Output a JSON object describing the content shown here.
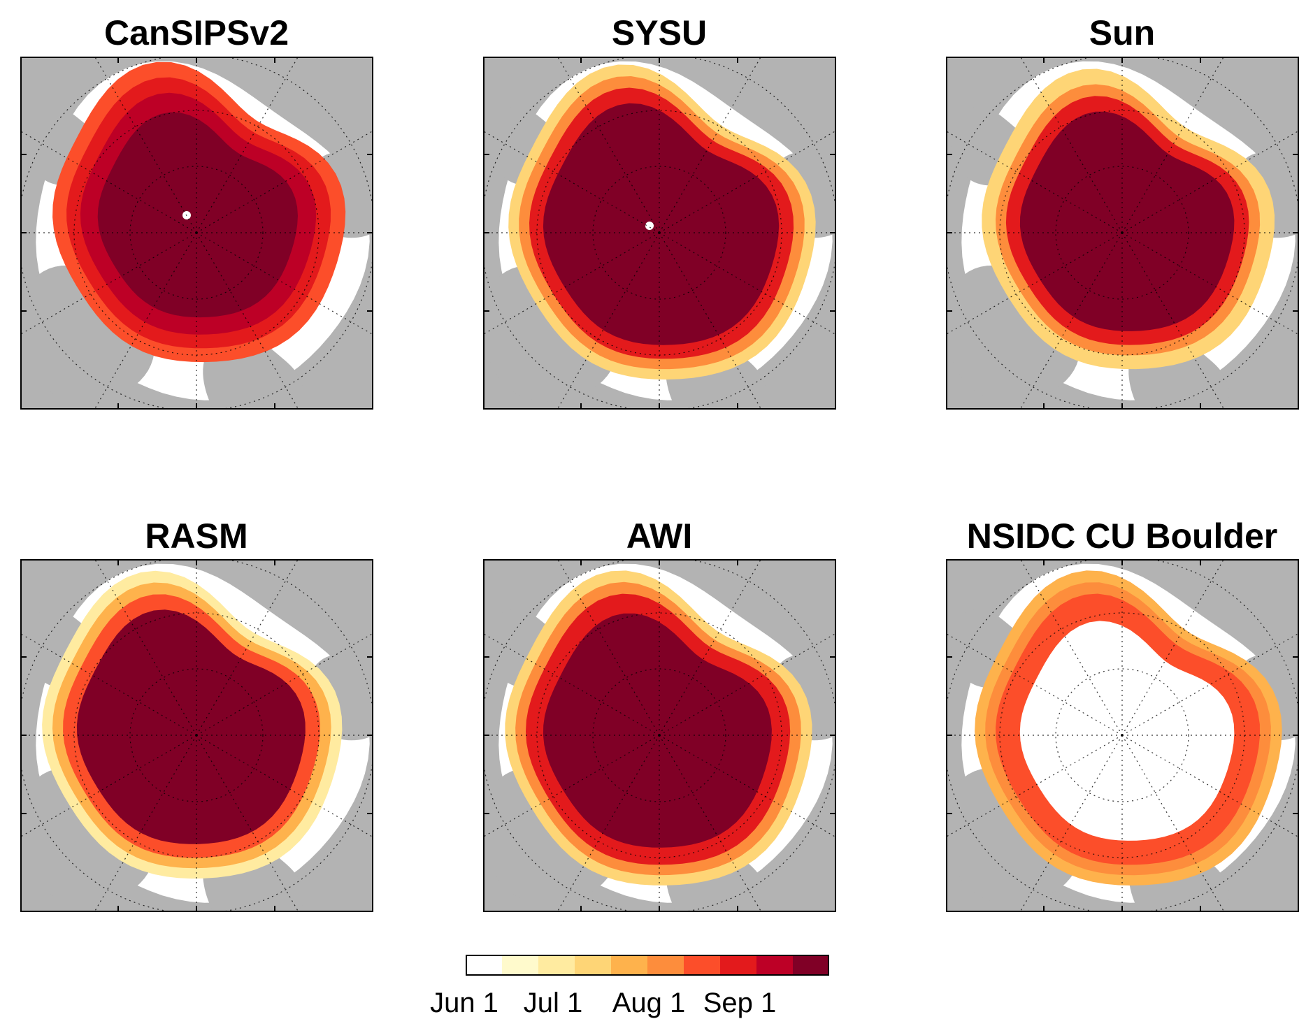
{
  "panels": [
    {
      "title": "CanSIPSv2"
    },
    {
      "title": "SYSU"
    },
    {
      "title": "Sun"
    },
    {
      "title": "RASM"
    },
    {
      "title": "AWI"
    },
    {
      "title": "NSIDC CU Boulder"
    }
  ],
  "colorbar": {
    "colors": [
      "#ffffff",
      "#fffacc",
      "#ffeba0",
      "#fed576",
      "#feb24c",
      "#fd8d3c",
      "#fc4e2a",
      "#e31a1c",
      "#bd0026",
      "#800026"
    ],
    "tick_labels": [
      "Jun 1",
      "Jul 1",
      "Aug 1",
      "Sep 1"
    ]
  },
  "colors": {
    "land": "#b3b3b3",
    "ocean": "#ffffff",
    "outline": "#000000"
  }
}
